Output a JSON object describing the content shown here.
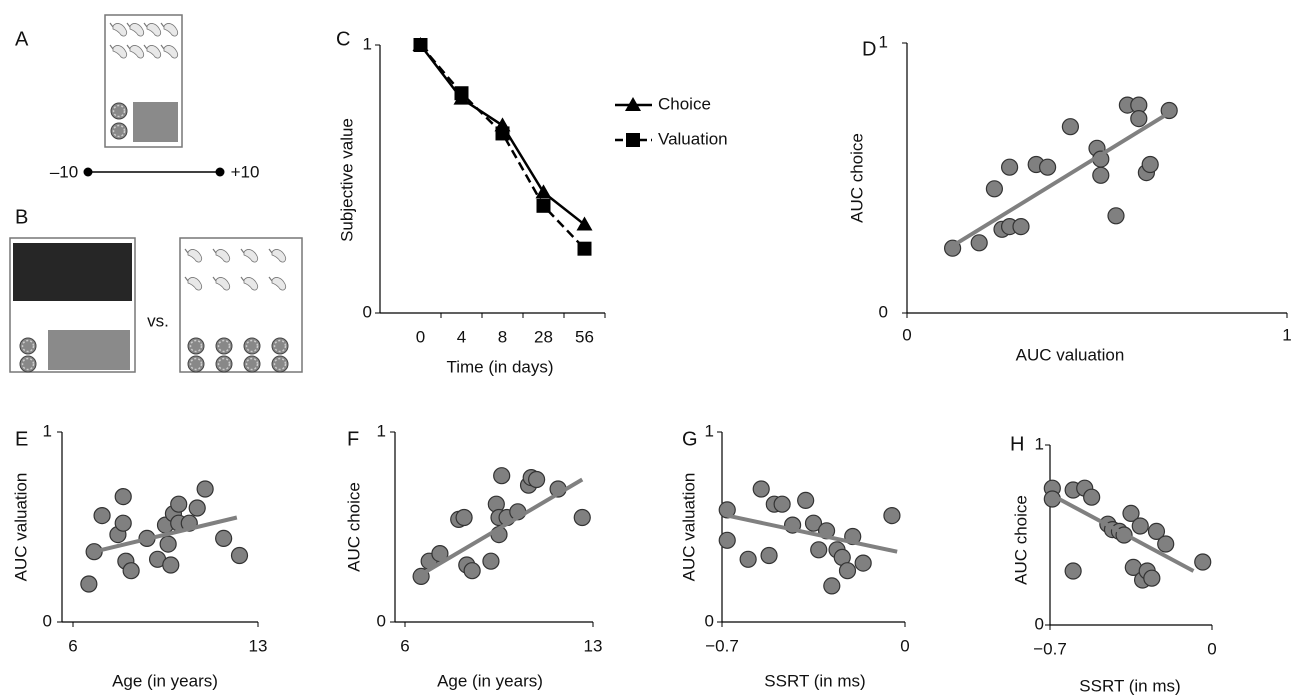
{
  "chart_data": [
    {
      "type": "line",
      "panel": "C",
      "ylabel": "Subjective value",
      "xlabel": "Time (in days)",
      "categories": [
        "0",
        "4",
        "8",
        "28",
        "56"
      ],
      "series": [
        {
          "name": "Choice",
          "color": "#000000",
          "marker": "triangle",
          "dash": false,
          "values": [
            1,
            0.8,
            0.7,
            0.45,
            0.33
          ]
        },
        {
          "name": "Valuation",
          "color": "#000000",
          "marker": "square",
          "dash": true,
          "values": [
            1,
            0.82,
            0.67,
            0.4,
            0.24
          ]
        }
      ],
      "ylim": [
        0,
        1
      ],
      "yticks": [
        0,
        1
      ]
    },
    {
      "type": "scatter",
      "panel": "D",
      "ylabel": "AUC choice",
      "xlabel": "AUC valuation",
      "color": "#808080",
      "x": [
        0.12,
        0.19,
        0.23,
        0.25,
        0.27,
        0.27,
        0.3,
        0.34,
        0.37,
        0.43,
        0.5,
        0.51,
        0.51,
        0.55,
        0.58,
        0.61,
        0.61,
        0.63,
        0.64,
        0.69
      ],
      "values": [
        0.24,
        0.26,
        0.46,
        0.31,
        0.32,
        0.54,
        0.32,
        0.55,
        0.54,
        0.69,
        0.61,
        0.57,
        0.51,
        0.36,
        0.77,
        0.77,
        0.72,
        0.52,
        0.55,
        0.75
      ],
      "fit": {
        "x": [
          0.11,
          0.7
        ],
        "values": [
          0.24,
          0.75
        ]
      },
      "xlim": [
        0,
        1
      ],
      "xticks": [
        0,
        1
      ],
      "ylim": [
        0,
        1
      ],
      "yticks": [
        0,
        1
      ]
    },
    {
      "type": "scatter",
      "panel": "E",
      "ylabel": "AUC valuation",
      "xlabel": "Age (in years)",
      "color": "#808080",
      "x": [
        6.6,
        6.8,
        7.1,
        7.7,
        7.9,
        7.9,
        8.0,
        8.2,
        8.8,
        9.2,
        9.5,
        9.6,
        9.7,
        9.8,
        10.0,
        10.0,
        10.4,
        10.7,
        11.0,
        11.7,
        12.3
      ],
      "values": [
        0.2,
        0.37,
        0.56,
        0.46,
        0.66,
        0.52,
        0.32,
        0.27,
        0.44,
        0.33,
        0.51,
        0.41,
        0.3,
        0.57,
        0.62,
        0.52,
        0.52,
        0.6,
        0.7,
        0.44,
        0.35
      ],
      "fit": {
        "x": [
          6.8,
          12.2
        ],
        "values": [
          0.37,
          0.55
        ]
      },
      "xlim": [
        6,
        13
      ],
      "xticks": [
        6,
        13
      ],
      "ylim": [
        0,
        1
      ],
      "yticks": [
        0,
        1
      ]
    },
    {
      "type": "scatter",
      "panel": "F",
      "ylabel": "AUC choice",
      "xlabel": "Age (in years)",
      "color": "#808080",
      "x": [
        6.6,
        6.9,
        7.3,
        8.0,
        8.2,
        8.3,
        8.5,
        9.2,
        9.4,
        9.5,
        9.5,
        9.6,
        9.8,
        10.2,
        10.6,
        10.7,
        10.9,
        11.7,
        12.6
      ],
      "values": [
        0.24,
        0.32,
        0.36,
        0.54,
        0.55,
        0.3,
        0.27,
        0.32,
        0.62,
        0.46,
        0.55,
        0.77,
        0.55,
        0.58,
        0.72,
        0.76,
        0.75,
        0.7,
        0.55
      ],
      "fit": {
        "x": [
          6.6,
          12.6
        ],
        "values": [
          0.25,
          0.75
        ]
      },
      "xlim": [
        6,
        13
      ],
      "xticks": [
        6,
        13
      ],
      "ylim": [
        0,
        1
      ],
      "yticks": [
        0,
        1
      ]
    },
    {
      "type": "scatter",
      "panel": "G",
      "ylabel": "AUC valuation",
      "xlabel": "SSRT (in ms)",
      "color": "#808080",
      "x": [
        -0.68,
        -0.68,
        -0.6,
        -0.55,
        -0.52,
        -0.5,
        -0.47,
        -0.43,
        -0.38,
        -0.35,
        -0.33,
        -0.3,
        -0.28,
        -0.26,
        -0.24,
        -0.22,
        -0.2,
        -0.16,
        -0.05
      ],
      "values": [
        0.59,
        0.43,
        0.33,
        0.7,
        0.35,
        0.62,
        0.62,
        0.51,
        0.64,
        0.52,
        0.38,
        0.48,
        0.19,
        0.38,
        0.34,
        0.27,
        0.45,
        0.31,
        0.56
      ],
      "fit": {
        "x": [
          -0.68,
          -0.03
        ],
        "values": [
          0.56,
          0.37
        ]
      },
      "xlim": [
        -0.7,
        0
      ],
      "xticks": [
        {
          "value": -0.7,
          "label": "−0.7"
        },
        0
      ],
      "ylim": [
        0,
        1
      ],
      "yticks": [
        0,
        1
      ]
    },
    {
      "type": "scatter",
      "panel": "H",
      "ylabel": "AUC choice",
      "xlabel": "SSRT (in ms)",
      "color": "#808080",
      "x": [
        -0.69,
        -0.69,
        -0.6,
        -0.6,
        -0.55,
        -0.52,
        -0.45,
        -0.43,
        -0.4,
        -0.38,
        -0.35,
        -0.34,
        -0.31,
        -0.3,
        -0.28,
        -0.26,
        -0.24,
        -0.2,
        -0.04
      ],
      "values": [
        0.76,
        0.7,
        0.3,
        0.75,
        0.76,
        0.71,
        0.56,
        0.53,
        0.52,
        0.5,
        0.62,
        0.32,
        0.55,
        0.25,
        0.3,
        0.26,
        0.52,
        0.45,
        0.35
      ],
      "fit": {
        "x": [
          -0.69,
          -0.08
        ],
        "values": [
          0.72,
          0.3
        ]
      },
      "xlim": [
        -0.7,
        0
      ],
      "xticks": [
        {
          "value": -0.7,
          "label": "−0.7"
        },
        0
      ],
      "ylim": [
        0,
        1
      ],
      "yticks": [
        0,
        1
      ]
    }
  ],
  "illustrations": {
    "A": {
      "label": "A",
      "scale_left": "–10",
      "scale_right": "+10"
    },
    "B": {
      "label": "B",
      "connector": "vs."
    }
  }
}
